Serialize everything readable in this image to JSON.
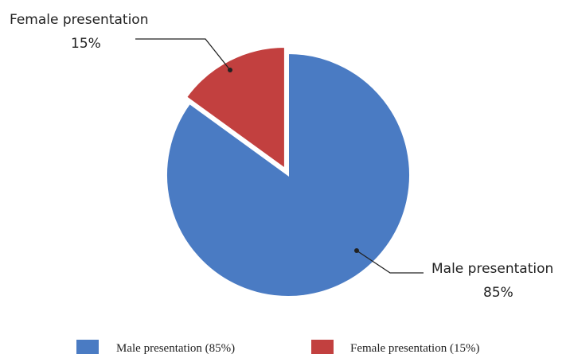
{
  "chart_data": {
    "type": "pie",
    "title": "",
    "slices": [
      {
        "label": "Male presentation",
        "value": 85,
        "value_text": "85%",
        "color": "#4a7bc3",
        "exploded": false
      },
      {
        "label": "Female presentation",
        "value": 15,
        "value_text": "15%",
        "color": "#c2403f",
        "exploded": true
      }
    ],
    "start_angle_deg": 0,
    "direction": "clockwise",
    "legend": {
      "placement": "bottom",
      "entries": [
        "Male presentation (85%)",
        "Female presentation (15%)"
      ]
    }
  }
}
